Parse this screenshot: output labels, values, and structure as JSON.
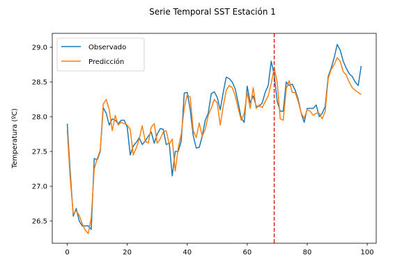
{
  "chart_data": {
    "type": "line",
    "title": "Serie Temporal SST Estación 1",
    "xlabel": "",
    "ylabel": "Temperatura (ºC)",
    "xlim": [
      -5,
      103
    ],
    "ylim": [
      26.18,
      29.2
    ],
    "xticks": [
      0,
      20,
      40,
      60,
      80,
      100
    ],
    "yticks": [
      26.5,
      27.0,
      27.5,
      28.0,
      28.5,
      29.0
    ],
    "xtick_labels": [
      "0",
      "20",
      "40",
      "60",
      "80",
      "100"
    ],
    "ytick_labels": [
      "26.5",
      "27.0",
      "27.5",
      "28.0",
      "28.5",
      "29.0"
    ],
    "grid": false,
    "legend_position": "top-left",
    "x": [
      0,
      1,
      2,
      3,
      4,
      5,
      6,
      7,
      8,
      9,
      10,
      11,
      12,
      13,
      14,
      15,
      16,
      17,
      18,
      19,
      20,
      21,
      22,
      23,
      24,
      25,
      26,
      27,
      28,
      29,
      30,
      31,
      32,
      33,
      34,
      35,
      36,
      37,
      38,
      39,
      40,
      41,
      42,
      43,
      44,
      45,
      46,
      47,
      48,
      49,
      50,
      51,
      52,
      53,
      54,
      55,
      56,
      57,
      58,
      59,
      60,
      61,
      62,
      63,
      64,
      65,
      66,
      67,
      68,
      69,
      70,
      71,
      72,
      73,
      74,
      75,
      76,
      77,
      78,
      79,
      80,
      81,
      82,
      83,
      84,
      85,
      86,
      87,
      88,
      89,
      90,
      91,
      92,
      93,
      94,
      95,
      96,
      97,
      98
    ],
    "series": [
      {
        "name": "Observado",
        "color": "#1f77b4",
        "values": [
          27.9,
          27.2,
          26.57,
          26.68,
          26.5,
          26.43,
          26.43,
          26.43,
          26.38,
          27.4,
          27.38,
          27.5,
          28.13,
          28.05,
          27.88,
          27.97,
          27.95,
          27.9,
          27.95,
          27.95,
          27.85,
          27.45,
          27.58,
          27.63,
          27.7,
          27.6,
          27.65,
          27.72,
          27.78,
          27.62,
          27.75,
          27.83,
          27.82,
          27.6,
          27.62,
          27.15,
          27.5,
          27.5,
          27.65,
          28.34,
          28.35,
          28.1,
          27.73,
          27.55,
          27.56,
          27.72,
          27.95,
          28.05,
          28.33,
          28.36,
          28.28,
          28.1,
          28.35,
          28.57,
          28.55,
          28.5,
          28.4,
          28.2,
          27.98,
          27.92,
          28.44,
          28.2,
          28.3,
          28.15,
          28.15,
          28.2,
          28.35,
          28.45,
          28.8,
          28.6,
          28.22,
          28.08,
          28.08,
          28.5,
          28.45,
          28.47,
          28.38,
          28.25,
          28.05,
          27.92,
          28.12,
          28.12,
          28.12,
          28.17,
          28,
          28.05,
          28.15,
          28.58,
          28.7,
          28.85,
          29.04,
          28.96,
          28.8,
          28.7,
          28.62,
          28.58,
          28.5,
          28.45,
          28.73
        ]
      },
      {
        "name": "Predicción",
        "color": "#ff7f0e",
        "values": [
          27.8,
          27.1,
          26.6,
          26.65,
          26.58,
          26.46,
          26.37,
          26.32,
          26.55,
          27.25,
          27.4,
          27.52,
          28.18,
          28.25,
          28.1,
          27.8,
          28.02,
          27.88,
          27.92,
          27.9,
          27.88,
          27.82,
          27.45,
          27.55,
          27.68,
          27.87,
          27.65,
          27.62,
          27.85,
          27.9,
          27.62,
          27.68,
          27.78,
          27.8,
          27.6,
          27.68,
          27.22,
          27.55,
          27.75,
          28.12,
          28.32,
          28.28,
          27.8,
          27.7,
          27.91,
          27.72,
          27.82,
          28.02,
          28.12,
          28.25,
          28.2,
          27.88,
          28.15,
          28.38,
          28.45,
          28.42,
          28.3,
          28.12,
          27.95,
          28.05,
          28.35,
          28.12,
          28.42,
          28.12,
          28.17,
          28.13,
          28.22,
          28.3,
          28.48,
          28.7,
          28.5,
          27.97,
          27.95,
          28.4,
          28.52,
          28.35,
          28.35,
          28.22,
          28.05,
          27.98,
          28.1,
          28.08,
          28.02,
          28.05,
          28.05,
          27.97,
          28.08,
          28.55,
          28.68,
          28.75,
          28.85,
          28.8,
          28.65,
          28.6,
          28.5,
          28.42,
          28.38,
          28.35,
          28.32
        ]
      }
    ],
    "reference_line": {
      "x": 69,
      "color": "#d62728",
      "style": "dashed"
    }
  }
}
